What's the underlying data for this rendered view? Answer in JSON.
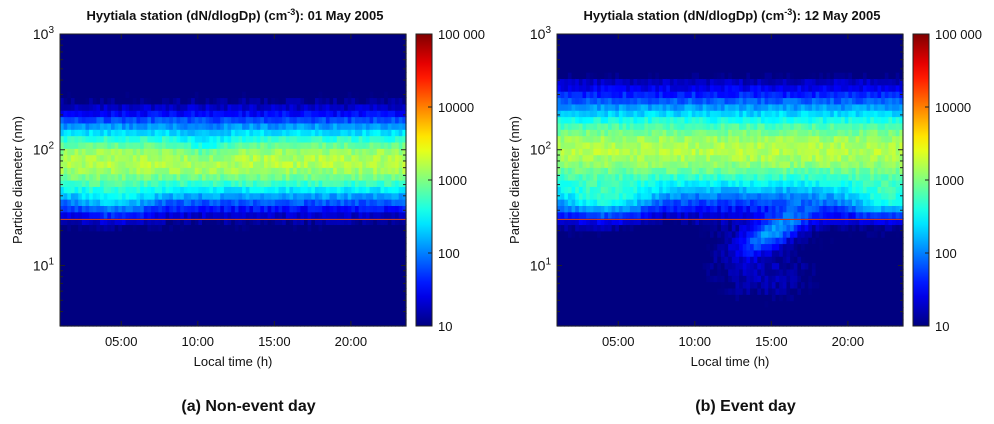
{
  "chart_data": [
    {
      "type": "heatmap",
      "title_prefix": "Hyytiala station (dN/dlogDp) (cm",
      "title_exp": "-3",
      "title_suffix": "): 01 May 2005",
      "xlabel": "Local time (h)",
      "ylabel": "Particle diameter (nm)",
      "x_ticks": [
        "05:00",
        "10:00",
        "15:00",
        "20:00"
      ],
      "x_tick_values": [
        5,
        10,
        15,
        20
      ],
      "xlim": [
        1,
        23.6
      ],
      "y_scale": "log",
      "ylim": [
        3,
        1000
      ],
      "y_ticks": [
        {
          "base": "10",
          "exp": "1",
          "value": 10
        },
        {
          "base": "10",
          "exp": "2",
          "value": 100
        },
        {
          "base": "10",
          "exp": "3",
          "value": 1000
        }
      ],
      "reference_line_diameter_nm": 25,
      "colorbar": {
        "scale": "log",
        "range": [
          10,
          100000
        ],
        "ticks": [
          "10",
          "100",
          "1000",
          "10000",
          "100 000"
        ],
        "tick_values": [
          10,
          100,
          1000,
          10000,
          100000
        ],
        "colormap": "jet"
      },
      "event": false,
      "caption": "(a) Non-event day"
    },
    {
      "type": "heatmap",
      "title_prefix": "Hyytiala station (dN/dlogDp) (cm",
      "title_exp": "-3",
      "title_suffix": "): 12 May 2005",
      "xlabel": "Local time (h)",
      "ylabel": "Particle diameter (nm)",
      "x_ticks": [
        "05:00",
        "10:00",
        "15:00",
        "20:00"
      ],
      "x_tick_values": [
        5,
        10,
        15,
        20
      ],
      "xlim": [
        1,
        23.6
      ],
      "y_scale": "log",
      "ylim": [
        3,
        1000
      ],
      "y_ticks": [
        {
          "base": "10",
          "exp": "1",
          "value": 10
        },
        {
          "base": "10",
          "exp": "2",
          "value": 100
        },
        {
          "base": "10",
          "exp": "3",
          "value": 1000
        }
      ],
      "reference_line_diameter_nm": 25,
      "colorbar": {
        "scale": "log",
        "range": [
          10,
          100000
        ],
        "ticks": [
          "10",
          "100",
          "1000",
          "10000",
          "100 000"
        ],
        "tick_values": [
          10,
          100,
          1000,
          10000,
          100000
        ],
        "colormap": "jet"
      },
      "event": true,
      "caption": "(b) Event day"
    }
  ],
  "colors": {
    "reference_line": "#c0392b",
    "axis": "#222222"
  }
}
